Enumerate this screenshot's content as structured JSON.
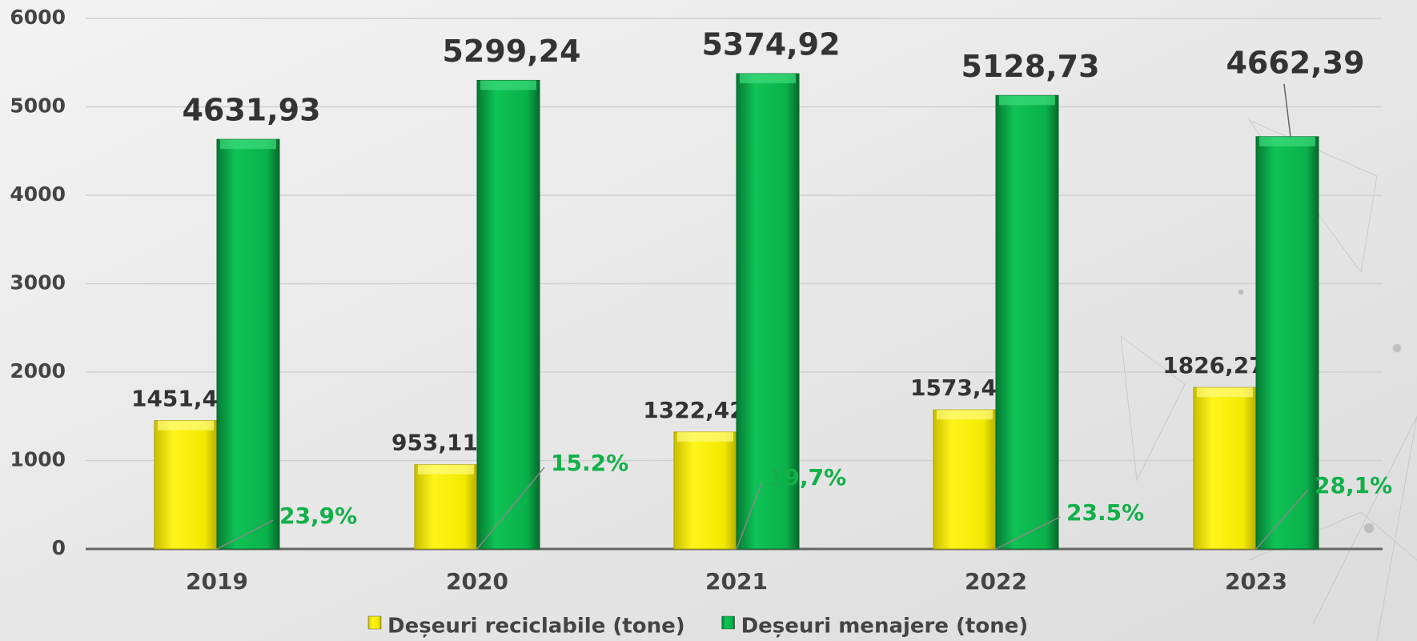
{
  "chart_data": {
    "type": "bar",
    "categories": [
      "2019",
      "2020",
      "2021",
      "2022",
      "2023"
    ],
    "series": [
      {
        "name": "Deșeuri reciclabile (tone)",
        "color": "#f2ea00",
        "values": [
          1451.4,
          953.11,
          1322.42,
          1573.4,
          1826.27
        ],
        "value_labels": [
          "1451,4",
          "953,11",
          "1322,42",
          "1573,4",
          "1826,27"
        ]
      },
      {
        "name": "Deșeuri menajere (tone)",
        "color": "#0ab04a",
        "values": [
          4631.93,
          5299.24,
          5374.92,
          5128.73,
          4662.39
        ],
        "value_labels": [
          "4631,93",
          "5299,24",
          "5374,92",
          "5128,73",
          "4662,39"
        ]
      }
    ],
    "annotations": [
      {
        "value": 23.9,
        "label": "23,9%"
      },
      {
        "value": 15.2,
        "label": "15.2%"
      },
      {
        "value": 19.7,
        "label": "19,7%"
      },
      {
        "value": 23.5,
        "label": "23.5%"
      },
      {
        "value": 28.1,
        "label": "28,1%"
      }
    ],
    "ylim": [
      0,
      6000
    ],
    "yticks": [
      0,
      1000,
      2000,
      3000,
      4000,
      5000,
      6000
    ],
    "grid": true
  }
}
